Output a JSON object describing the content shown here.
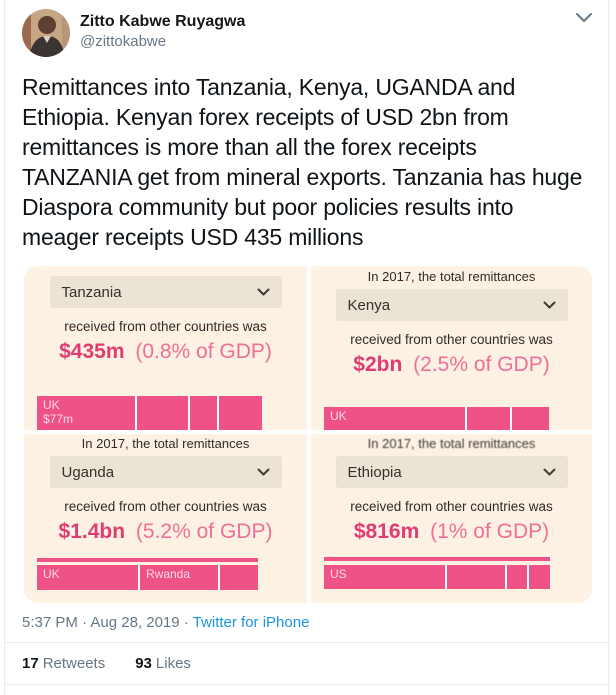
{
  "tweet": {
    "author_name": "Zitto Kabwe Ruyagwa",
    "author_handle": "@zittokabwe",
    "body_lines": [
      "Remittances into Tanzania, Kenya, UGANDA and",
      "Ethiopia. Kenyan forex receipts of USD 2bn from",
      "remittances is more than all the forex receipts",
      "TANZANIA get from mineral exports. Tanzania has huge",
      "Diaspora community but poor policies results into",
      "meager receipts USD 435 millions"
    ],
    "timestamp": "5:37 PM · Aug 28, 2019",
    "separator": "·",
    "source": "Twitter for iPhone",
    "retweets_count": "17",
    "retweets_label": "Retweets",
    "likes_count": "93",
    "likes_label": "Likes",
    "more_icon": "chevron-down"
  },
  "image_widget": {
    "context_line": "In 2017, the total remittances",
    "subtitle": "received from other countries was",
    "panels": [
      {
        "country": "Tanzania",
        "value": "$435m",
        "value_note": "(0.8% of GDP)",
        "bar_segments": [
          {
            "width_pct": 43.6,
            "label": "UK",
            "sublabel": "$77m"
          },
          {
            "width_pct": 23.5
          },
          {
            "width_pct": 12.9
          },
          {
            "width_pct": 20.0
          }
        ]
      },
      {
        "country": "Kenya",
        "value": "$2bn",
        "value_note": "(2.5% of GDP)",
        "bar_segments": [
          {
            "width_pct": 62.7,
            "label": "UK"
          },
          {
            "width_pct": 20.0
          },
          {
            "width_pct": 17.3
          }
        ]
      },
      {
        "country": "Uganda",
        "value": "$1.4bn",
        "value_note": "(5.2% of GDP)",
        "bar_segments": [
          {
            "width_pct": 45.7,
            "label": "UK"
          },
          {
            "width_pct": 36.2,
            "label": "Rwanda"
          },
          {
            "width_pct": 18.1
          }
        ]
      },
      {
        "country": "Ethiopia",
        "value": "$816m",
        "value_note": "(1% of GDP)",
        "bar_segments": [
          {
            "width_pct": 53.5,
            "label": "US"
          },
          {
            "width_pct": 26.6
          },
          {
            "width_pct": 9.7
          },
          {
            "width_pct": 10.2
          }
        ]
      }
    ],
    "colors": {
      "panel_bg": "#fcf1e3",
      "dropdown_bg": "#ebe3d3",
      "bar_pink": "#ef5286",
      "value_pink": "#e23b72",
      "value_note_pink": "#ee6f97"
    }
  }
}
